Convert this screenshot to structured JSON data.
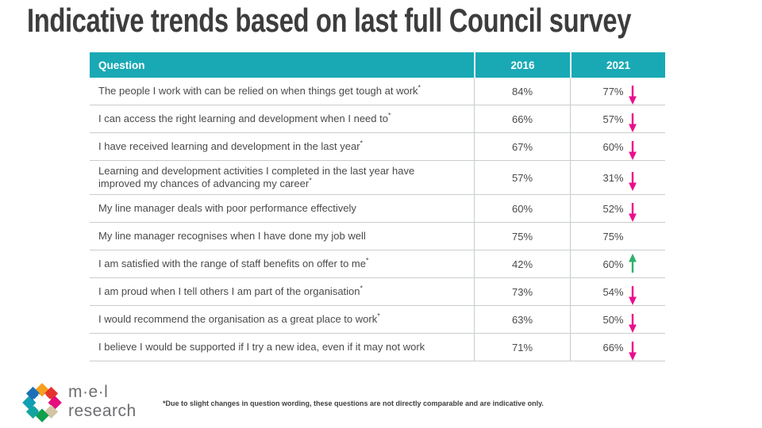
{
  "title": "Indicative trends based on last full Council survey",
  "colors": {
    "header_teal": "#19a9b5",
    "down_arrow": "#ec0d8c",
    "up_arrow": "#2eb26a",
    "title_text": "#3d3d3d",
    "body_text": "#4a4a4a"
  },
  "table": {
    "headers": [
      "Question",
      "2016",
      "2021"
    ],
    "rows": [
      {
        "question": "The people I work with can be relied on when things get tough at work",
        "asterisk": true,
        "y2016": "84%",
        "y2021": "77%",
        "trend": "down"
      },
      {
        "question": "I can access the right learning and development when I need to",
        "asterisk": true,
        "y2016": "66%",
        "y2021": "57%",
        "trend": "down"
      },
      {
        "question": "I have received learning and development in the last year",
        "asterisk": true,
        "y2016": "67%",
        "y2021": "60%",
        "trend": "down"
      },
      {
        "question": "Learning and development activities I completed in the last year have improved my chances of advancing my career",
        "asterisk": true,
        "y2016": "57%",
        "y2021": "31%",
        "trend": "down"
      },
      {
        "question": "My line manager deals with poor performance effectively",
        "asterisk": false,
        "y2016": "60%",
        "y2021": "52%",
        "trend": "down"
      },
      {
        "question": "My line manager recognises when I have done my job well",
        "asterisk": false,
        "y2016": "75%",
        "y2021": "75%",
        "trend": "none"
      },
      {
        "question": "I am satisfied with the range of staff benefits on offer to me",
        "asterisk": true,
        "y2016": "42%",
        "y2021": "60%",
        "trend": "up"
      },
      {
        "question": "I am proud when I tell others I am part of the organisation",
        "asterisk": true,
        "y2016": "73%",
        "y2021": "54%",
        "trend": "down"
      },
      {
        "question": "I would recommend the organisation as a great place to work",
        "asterisk": true,
        "y2016": "63%",
        "y2021": "50%",
        "trend": "down"
      },
      {
        "question": "I believe I would be supported if I try a new idea, even if it may not work",
        "asterisk": false,
        "y2016": "71%",
        "y2021": "66%",
        "trend": "down"
      }
    ]
  },
  "chart_data": {
    "type": "table",
    "title": "Indicative trends based on last full Council survey",
    "columns": [
      "Question",
      "2016",
      "2021"
    ],
    "categories": [
      "The people I work with can be relied on when things get tough at work",
      "I can access the right learning and development when I need to",
      "I have received learning and development in the last year",
      "Learning and development activities I completed in the last year have improved my chances of advancing my career",
      "My line manager deals with poor performance effectively",
      "My line manager recognises when I have done my job well",
      "I am satisfied with the range of staff benefits on offer to me",
      "I am proud when I tell others I am part of the organisation",
      "I would recommend the organisation as a great place to work",
      "I believe I would be supported if I try a new idea, even if it may not work"
    ],
    "series": [
      {
        "name": "2016",
        "values": [
          84,
          66,
          67,
          57,
          60,
          75,
          42,
          73,
          63,
          71
        ]
      },
      {
        "name": "2021",
        "values": [
          77,
          57,
          60,
          31,
          52,
          75,
          60,
          54,
          50,
          66
        ]
      }
    ],
    "trends": [
      "down",
      "down",
      "down",
      "down",
      "down",
      "none",
      "up",
      "down",
      "down",
      "down"
    ]
  },
  "footnote": "*Due to slight changes in question wording, these questions are not directly comparable and are indicative only.",
  "logo": {
    "line1": "m·e·l",
    "line2": "research",
    "diamond_colors": [
      "#f5a01e",
      "#e6332d",
      "#e50c7e",
      "#d2c5a5",
      "#0fa04c",
      "#14a4a0",
      "#109fb4",
      "#1d70b7"
    ]
  }
}
